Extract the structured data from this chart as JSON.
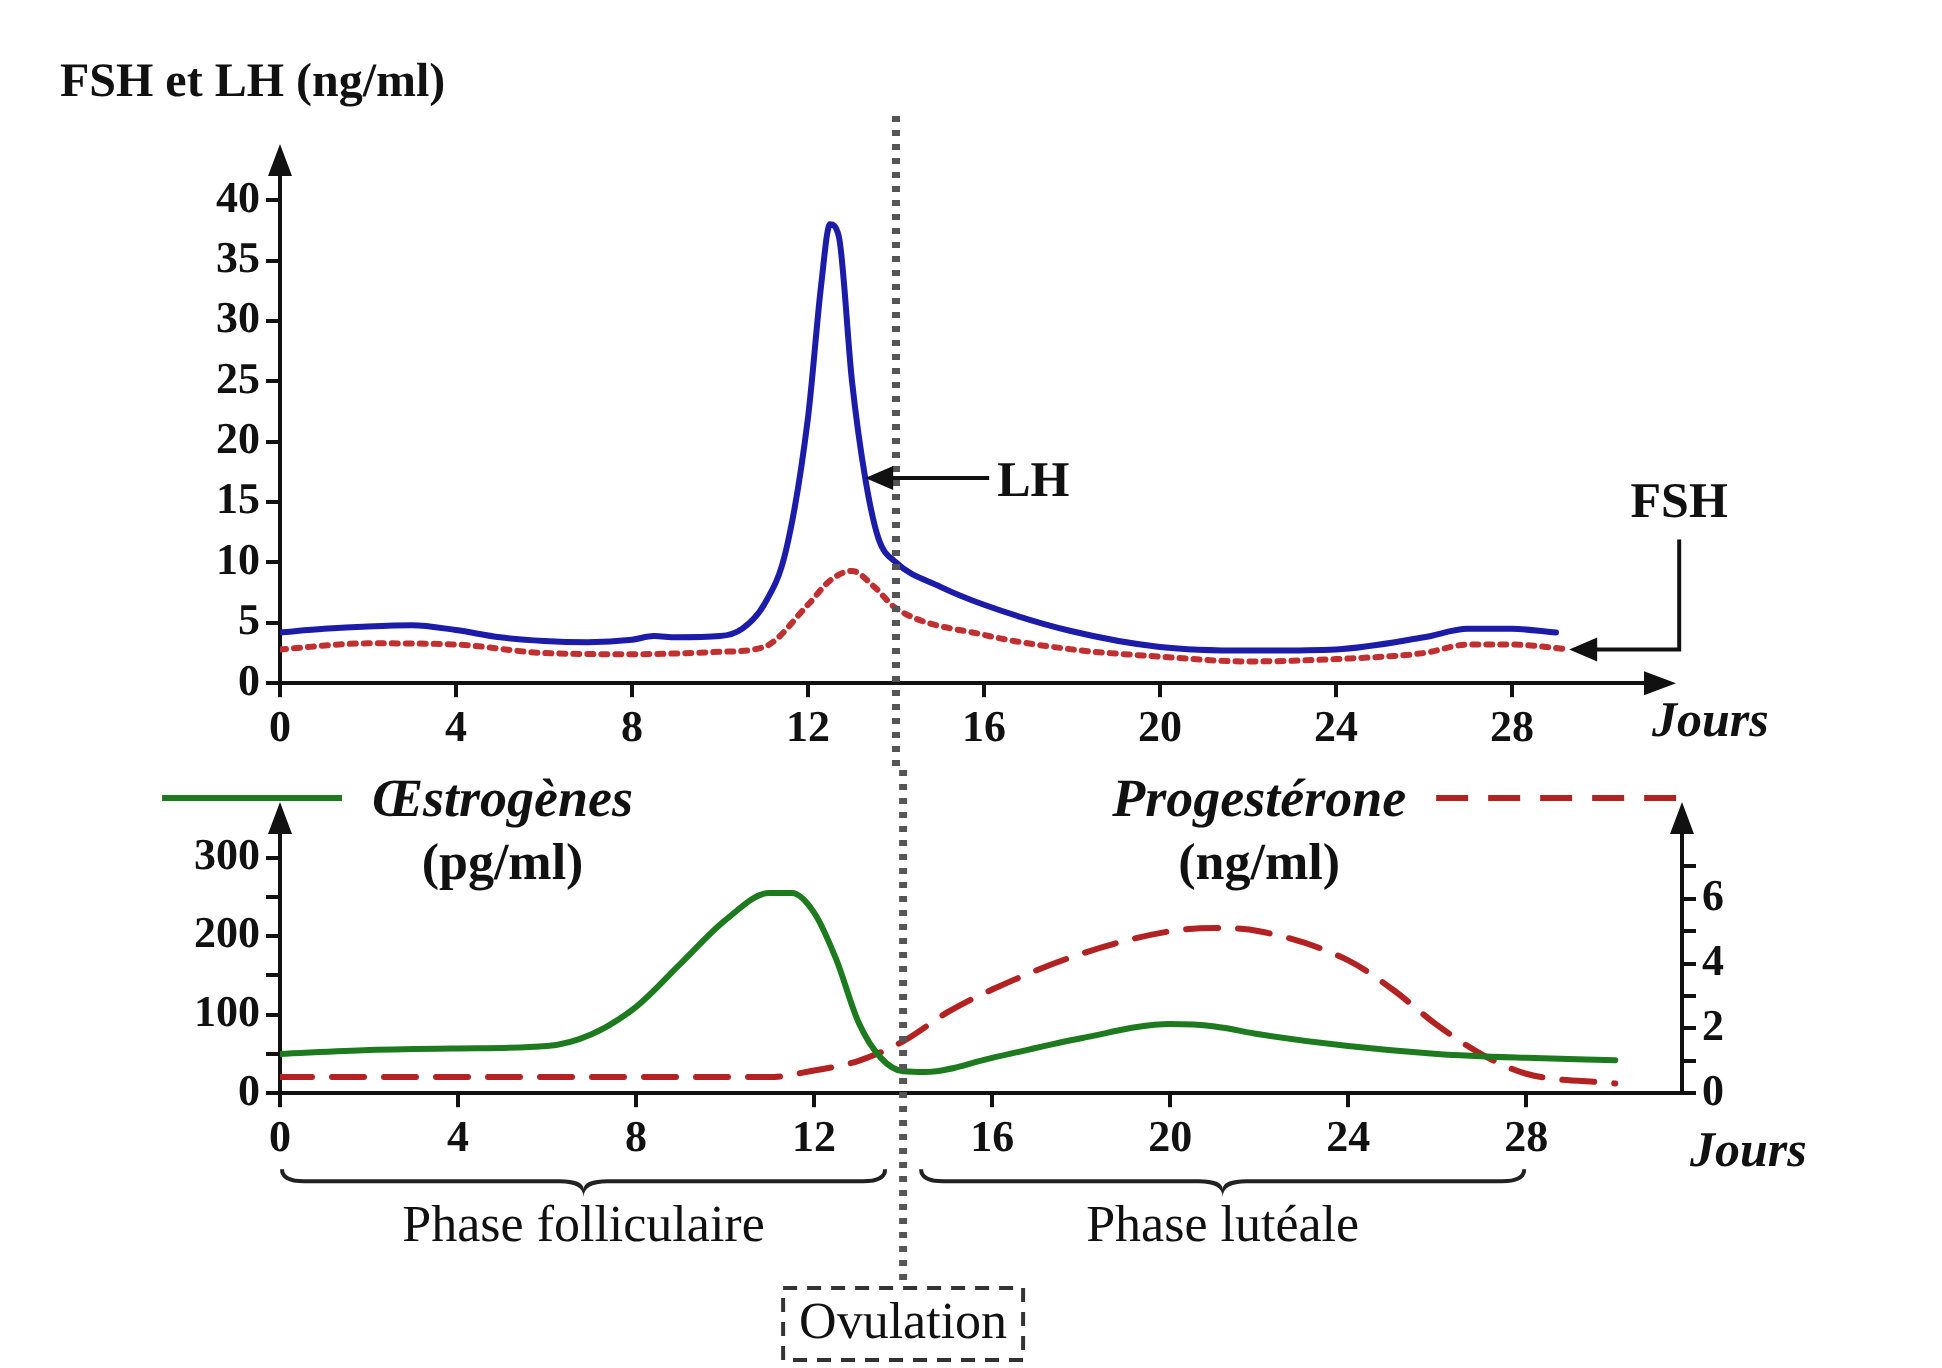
{
  "chart_data": [
    {
      "type": "line",
      "ylabel": "FSH et LH (ng/ml)",
      "xlabel": "Jours",
      "xlim": [
        0,
        31
      ],
      "xticks": [
        0,
        4,
        8,
        12,
        16,
        20,
        24,
        28
      ],
      "ylim": [
        0,
        42
      ],
      "yticks": [
        0,
        5,
        10,
        15,
        20,
        25,
        30,
        35,
        40
      ],
      "grid": false,
      "marker": "none",
      "series": [
        {
          "color": "#1c1ca8",
          "line_style": "solid",
          "x": [
            0,
            1,
            2,
            3,
            4,
            5,
            6,
            7,
            8,
            8.5,
            9,
            10,
            10.5,
            11,
            11.5,
            12,
            12.3,
            12.5,
            12.7,
            13,
            13.3,
            13.6,
            14,
            15,
            16,
            18,
            20,
            22,
            24,
            26,
            27,
            28,
            29
          ],
          "values": [
            4.2,
            4.5,
            4.7,
            4.8,
            4.4,
            3.8,
            3.5,
            3.4,
            3.6,
            3.9,
            3.8,
            3.9,
            4.5,
            6.5,
            11,
            22,
            33,
            38,
            37,
            25,
            17,
            12,
            10,
            8,
            6.5,
            4.3,
            3,
            2.7,
            2.8,
            3.8,
            4.5,
            4.5,
            4.2
          ]
        },
        {
          "color": "#c03030",
          "line_style": "dotted",
          "x": [
            0,
            2,
            4,
            6,
            8,
            10,
            11,
            12,
            12.5,
            13,
            13.5,
            14,
            16,
            18,
            20,
            22,
            24,
            26,
            27,
            28,
            29.3
          ],
          "values": [
            2.8,
            3.3,
            3.2,
            2.5,
            2.4,
            2.6,
            3,
            6.5,
            8.5,
            9.3,
            8,
            6.2,
            4,
            2.8,
            2.2,
            1.8,
            2,
            2.5,
            3.2,
            3.2,
            2.8
          ]
        }
      ],
      "ref_lines": [
        {
          "axis": "x",
          "value": 14,
          "color": "#555555",
          "line_style": "dotted"
        }
      ],
      "annotations": [
        {
          "text": "LH",
          "x": 13.3,
          "y": 17
        },
        {
          "text": "FSH",
          "x": 29.3,
          "y": 2.8
        }
      ]
    },
    {
      "type": "line",
      "ylabel": "(pg/ml)",
      "y2label": "(ng/ml)",
      "xlabel": "Jours",
      "xlim": [
        0,
        31.5
      ],
      "xticks": [
        0,
        4,
        8,
        12,
        16,
        20,
        24,
        28
      ],
      "ylim": [
        0,
        330
      ],
      "yticks": [
        0,
        {
          "value": 50,
          "label": null
        },
        100,
        {
          "value": 150,
          "label": null
        },
        200,
        {
          "value": 250,
          "label": null
        },
        300
      ],
      "y2lim": [
        0,
        8
      ],
      "y2ticks": [
        0,
        {
          "value": 1,
          "label": null
        },
        2,
        {
          "value": 3,
          "label": null
        },
        4,
        {
          "value": 5,
          "label": null
        },
        6,
        {
          "value": 7,
          "label": null
        }
      ],
      "grid": false,
      "marker": "none",
      "legend": "top",
      "series": [
        {
          "name": "Œstrogènes",
          "color": "#1e7a1e",
          "line_style": "solid",
          "x": [
            0,
            2,
            4,
            6,
            7,
            8,
            9,
            10,
            11,
            11.5,
            12,
            12.5,
            13,
            13.5,
            14,
            14.5,
            16,
            18,
            20,
            21,
            22,
            24,
            26,
            28,
            30
          ],
          "values": [
            50,
            55,
            57,
            60,
            75,
            110,
            165,
            220,
            255,
            255,
            230,
            170,
            90,
            45,
            28,
            27,
            45,
            70,
            88,
            85,
            75,
            60,
            50,
            45,
            42
          ]
        },
        {
          "name": "Progestérone",
          "color": "#b22222",
          "line_style": "dashed",
          "axis": "y2",
          "x": [
            0,
            4,
            8,
            11,
            12,
            13,
            14,
            15,
            16,
            18,
            20,
            21,
            22,
            24,
            25,
            26,
            27,
            28,
            30
          ],
          "values": [
            0.5,
            0.5,
            0.5,
            0.5,
            0.7,
            1,
            1.6,
            2.5,
            3.2,
            4.3,
            5,
            5.1,
            5,
            4.1,
            3.2,
            2.1,
            1.2,
            0.6,
            0.3
          ]
        }
      ],
      "ref_lines": [
        {
          "axis": "x",
          "value": 14,
          "label": "Ovulation",
          "color": "#555555",
          "line_style": "dotted"
        }
      ],
      "annotations": [
        "Phase folliculaire",
        "Phase lutéale"
      ]
    }
  ]
}
